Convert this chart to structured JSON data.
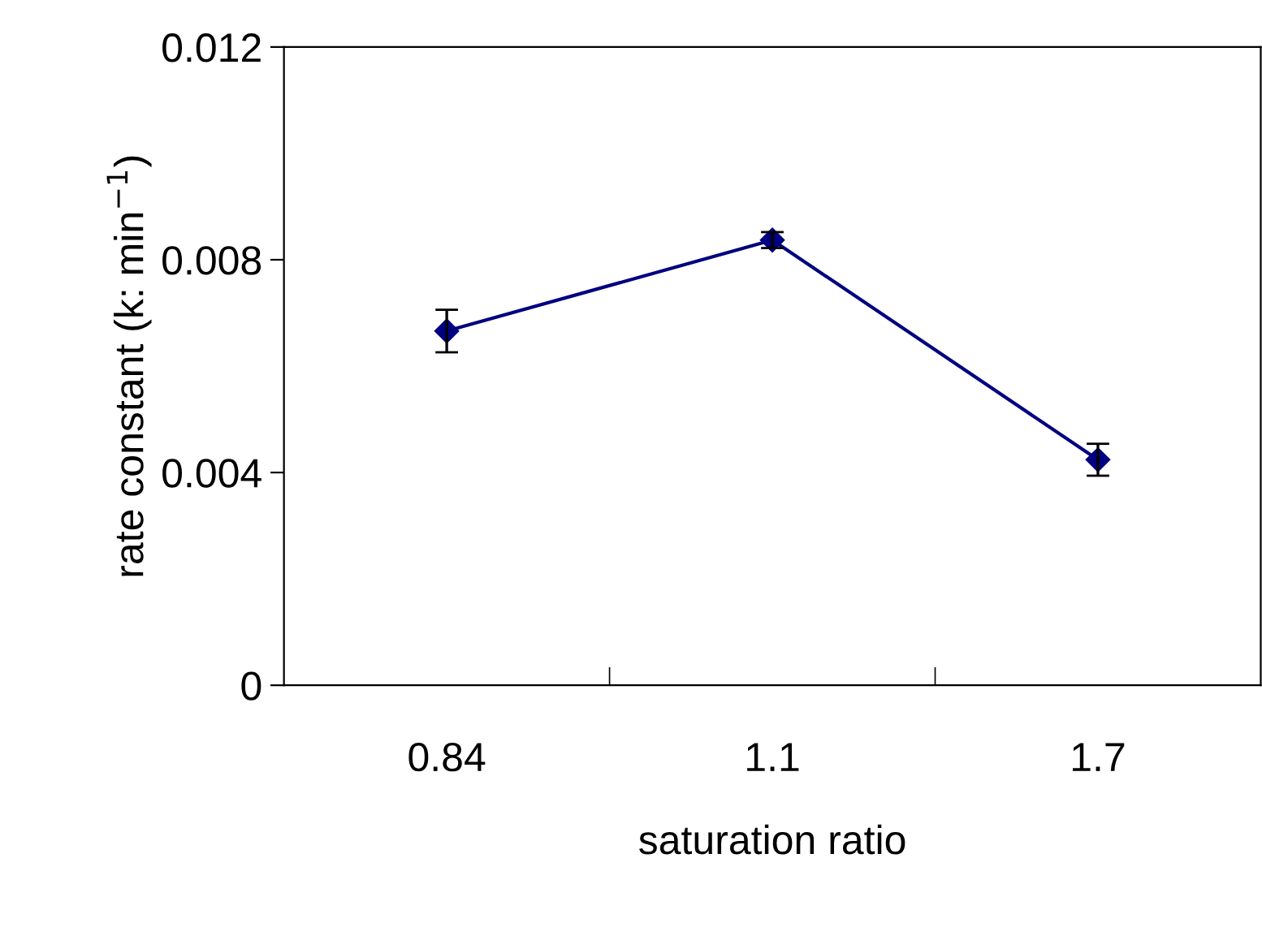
{
  "chart_data": {
    "type": "line",
    "xlabel": "saturation ratio",
    "ylabel": "rate constant (k: min$^{−1}$)",
    "categories": [
      "0.84",
      "1.1",
      "1.7"
    ],
    "series": [
      {
        "color": "#000080",
        "values": [
          0.00666,
          0.00837,
          0.00424
        ],
        "errors": [
          0.0004,
          0.00015,
          0.0003
        ]
      }
    ],
    "ylim": [
      0,
      0.012
    ],
    "yticks": [
      {
        "value": 0,
        "label": "0"
      },
      0.004,
      0.008,
      0.012
    ],
    "marker": "diamond",
    "line_style": "solid",
    "grid": false,
    "legend": false
  }
}
